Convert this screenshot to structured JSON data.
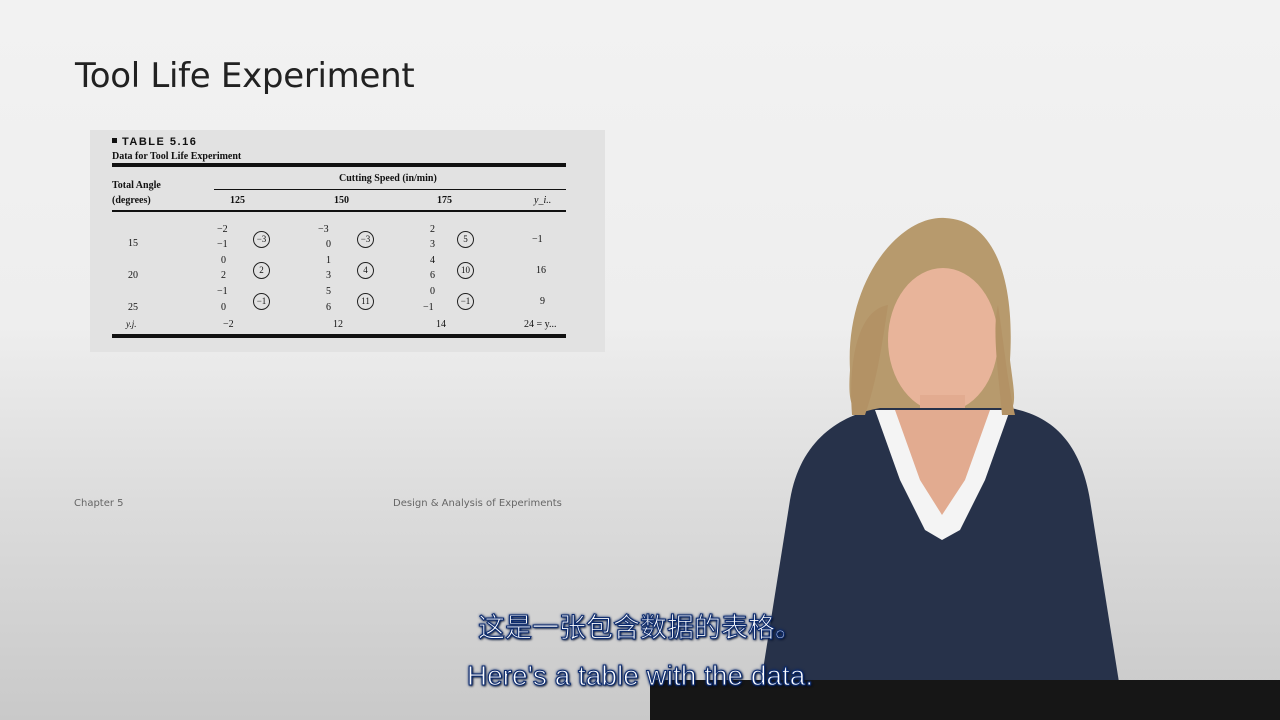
{
  "slide": {
    "title": "Tool Life Experiment",
    "footer_left": "Chapter 5",
    "footer_center": "Design & Analysis of Experiments"
  },
  "table": {
    "heading": "TABLE 5.16",
    "caption": "Data for Tool Life Experiment",
    "row_header_line1": "Total Angle",
    "row_header_line2": "(degrees)",
    "column_group_header": "Cutting Speed (in/min)",
    "columns": [
      "125",
      "150",
      "175",
      "y_i.."
    ],
    "rows": [
      {
        "angle": "15",
        "cells": [
          {
            "obs": [
              "−2",
              "−1"
            ],
            "total": "−3"
          },
          {
            "obs": [
              "−3",
              "0"
            ],
            "total": "−3"
          },
          {
            "obs": [
              "2",
              "3"
            ],
            "total": "5"
          }
        ],
        "row_total": "−1"
      },
      {
        "angle": "20",
        "cells": [
          {
            "obs": [
              "0",
              "2"
            ],
            "total": "2"
          },
          {
            "obs": [
              "1",
              "3"
            ],
            "total": "4"
          },
          {
            "obs": [
              "4",
              "6"
            ],
            "total": "10"
          }
        ],
        "row_total": "16"
      },
      {
        "angle": "25",
        "cells": [
          {
            "obs": [
              "−1",
              "0"
            ],
            "total": "−1"
          },
          {
            "obs": [
              "5",
              "6"
            ],
            "total": "11"
          },
          {
            "obs": [
              "0",
              "−1"
            ],
            "total": "−1"
          }
        ],
        "row_total": "9"
      }
    ],
    "footer_label": "y.j.",
    "column_totals": [
      "−2",
      "12",
      "14"
    ],
    "grand_total": "24 = y..."
  },
  "subtitles": {
    "chinese": "这是一张包含数据的表格。",
    "english": "Here's a table with the data."
  }
}
